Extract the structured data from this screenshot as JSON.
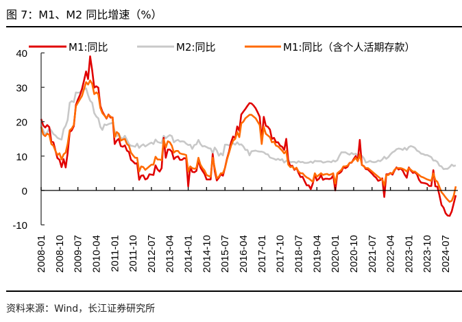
{
  "title": "图 7：M1、M2 同比增速（%）",
  "source": "资料来源：Wind，长江证券研究所",
  "chart_data": {
    "type": "line",
    "title": "",
    "xlabel": "",
    "ylabel": "",
    "x_start": "2008-01",
    "x_end": "2024-12",
    "x_frequency": "monthly",
    "ylim": [
      -10,
      40
    ],
    "yticks": [
      40,
      30,
      20,
      10,
      0,
      -10
    ],
    "xtick_labels": [
      "2008-01",
      "2008-10",
      "2009-07",
      "2010-04",
      "2011-01",
      "2011-10",
      "2012-07",
      "2013-04",
      "2014-01",
      "2014-10",
      "2015-07",
      "2016-04",
      "2017-01",
      "2017-10",
      "2018-07",
      "2019-04",
      "2020-01",
      "2020-10",
      "2021-07",
      "2022-04",
      "2023-01",
      "2023-10",
      "2024-07"
    ],
    "grid": false,
    "legend_position": "top",
    "series": [
      {
        "name": "M1:同比",
        "color": "#e00000",
        "values": [
          20.8,
          18.9,
          18.3,
          19.0,
          18.4,
          14.2,
          14.0,
          11.6,
          9.4,
          8.9,
          6.8,
          9.1,
          6.7,
          10.9,
          17.0,
          17.5,
          18.7,
          24.8,
          26.4,
          27.7,
          29.5,
          32.0,
          34.6,
          32.4,
          39.0,
          34.9,
          29.9,
          30.3,
          29.9,
          24.6,
          22.9,
          21.9,
          20.9,
          22.1,
          21.2,
          21.2,
          13.5,
          14.5,
          15.0,
          12.9,
          12.7,
          13.1,
          11.6,
          11.2,
          8.9,
          8.4,
          7.8,
          7.9,
          3.1,
          4.3,
          4.4,
          3.2,
          3.5,
          4.7,
          4.6,
          4.5,
          7.3,
          6.1,
          5.5,
          6.5,
          15.3,
          9.5,
          11.9,
          11.9,
          11.3,
          9.1,
          9.7,
          9.9,
          8.9,
          8.9,
          9.4,
          9.3,
          1.2,
          6.9,
          5.4,
          5.3,
          5.7,
          8.9,
          6.7,
          5.7,
          4.8,
          3.2,
          3.2,
          3.2,
          10.6,
          5.6,
          2.9,
          3.7,
          4.7,
          4.3,
          6.6,
          9.3,
          11.4,
          14.0,
          15.7,
          15.2,
          18.6,
          17.4,
          22.1,
          22.9,
          23.7,
          24.6,
          25.4,
          25.3,
          24.7,
          23.9,
          22.7,
          21.4,
          14.5,
          21.4,
          18.8,
          18.5,
          17.7,
          15.0,
          15.3,
          14.0,
          14.0,
          13.0,
          12.7,
          11.8,
          15.0,
          8.5,
          7.1,
          7.2,
          6.0,
          6.6,
          5.1,
          3.9,
          4.0,
          2.7,
          1.5,
          1.5,
          0.4,
          2.0,
          4.6,
          2.9,
          3.4,
          4.4,
          3.1,
          3.4,
          3.4,
          3.3,
          3.5,
          4.4,
          0.0,
          4.8,
          5.0,
          5.5,
          6.8,
          6.5,
          6.9,
          8.0,
          8.1,
          9.1,
          10.0,
          8.6,
          14.7,
          7.4,
          7.1,
          6.2,
          6.1,
          5.5,
          4.9,
          4.2,
          3.7,
          2.8,
          3.0,
          3.5,
          -1.9,
          4.7,
          4.7,
          5.1,
          4.6,
          5.8,
          6.7,
          6.1,
          6.4,
          5.8,
          4.6,
          3.7,
          6.7,
          5.8,
          5.1,
          5.3,
          4.7,
          3.1,
          2.3,
          2.2,
          2.1,
          1.9,
          1.3,
          1.3,
          5.9,
          1.2,
          1.1,
          -1.4,
          -4.2,
          -5.0,
          -6.6,
          -7.3,
          -7.4,
          -6.1,
          -3.7,
          -1.4
        ]
      },
      {
        "name": "M2:同比",
        "color": "#c8c8c8",
        "values": [
          18.9,
          17.5,
          16.3,
          16.9,
          18.1,
          17.4,
          16.4,
          16.0,
          15.3,
          15.0,
          14.8,
          17.8,
          18.8,
          20.5,
          25.5,
          26.0,
          25.7,
          28.5,
          28.4,
          28.5,
          29.3,
          29.4,
          29.7,
          27.7,
          26.1,
          25.5,
          22.5,
          21.5,
          21.0,
          18.5,
          17.6,
          19.2,
          19.0,
          19.3,
          19.5,
          19.7,
          17.2,
          15.7,
          16.6,
          15.3,
          15.1,
          15.9,
          14.7,
          13.5,
          13.0,
          12.9,
          12.7,
          13.6,
          12.4,
          13.0,
          13.4,
          12.8,
          13.2,
          13.6,
          13.9,
          13.5,
          14.8,
          14.1,
          13.9,
          13.8,
          15.9,
          15.2,
          15.7,
          16.1,
          15.8,
          14.0,
          14.5,
          14.7,
          14.2,
          14.3,
          14.2,
          13.6,
          13.2,
          13.3,
          12.1,
          13.2,
          13.4,
          14.7,
          13.5,
          12.8,
          12.9,
          12.6,
          12.3,
          12.2,
          10.8,
          12.5,
          11.6,
          10.1,
          10.8,
          10.2,
          13.3,
          13.3,
          13.1,
          13.5,
          13.7,
          13.3,
          14.0,
          13.3,
          13.4,
          12.8,
          11.8,
          11.8,
          10.2,
          11.4,
          11.5,
          11.6,
          11.4,
          11.3,
          11.3,
          11.1,
          10.6,
          10.5,
          9.6,
          9.4,
          9.2,
          8.9,
          9.2,
          8.8,
          9.1,
          8.1,
          8.6,
          8.8,
          8.2,
          8.3,
          8.3,
          8.0,
          8.5,
          8.2,
          8.3,
          8.0,
          8.0,
          8.1,
          8.4,
          8.0,
          8.6,
          8.5,
          8.5,
          8.5,
          8.1,
          8.2,
          8.4,
          8.4,
          8.2,
          8.7,
          8.4,
          8.8,
          10.1,
          11.1,
          11.1,
          11.1,
          10.7,
          10.4,
          10.9,
          10.5,
          10.7,
          10.1,
          9.4,
          10.1,
          9.4,
          8.1,
          8.3,
          8.6,
          8.3,
          8.2,
          8.3,
          8.7,
          8.5,
          9.0,
          9.8,
          9.2,
          9.7,
          10.5,
          11.1,
          11.4,
          12.0,
          12.2,
          12.1,
          11.8,
          12.4,
          11.8,
          12.6,
          12.9,
          12.7,
          12.4,
          11.6,
          11.3,
          10.7,
          10.6,
          10.3,
          10.3,
          10.0,
          9.7,
          8.7,
          8.7,
          8.3,
          7.2,
          7.0,
          6.2,
          6.3,
          6.3,
          6.8,
          7.5,
          7.1,
          7.3
        ]
      },
      {
        "name": "M1:同比（含个人活期存款）",
        "color": "#ff6a00",
        "values": [
          18.5,
          16.3,
          15.8,
          16.5,
          16.2,
          13.5,
          13.0,
          11.5,
          10.3,
          10.8,
          9.0,
          10.5,
          11.0,
          13.5,
          17.5,
          18.0,
          19.0,
          24.5,
          25.5,
          26.5,
          27.5,
          29.5,
          31.5,
          30.8,
          32.0,
          31.0,
          28.0,
          28.5,
          28.0,
          24.0,
          22.5,
          21.8,
          21.0,
          22.0,
          21.5,
          21.0,
          15.5,
          17.0,
          16.5,
          14.5,
          14.8,
          15.0,
          13.5,
          13.0,
          11.0,
          10.2,
          9.5,
          9.5,
          5.5,
          7.0,
          6.8,
          6.0,
          6.5,
          7.0,
          7.5,
          7.5,
          9.8,
          9.0,
          9.0,
          8.8,
          14.8,
          12.5,
          14.3,
          14.0,
          13.0,
          11.0,
          11.5,
          11.5,
          10.8,
          10.6,
          10.5,
          10.3,
          5.5,
          7.0,
          6.5,
          6.3,
          6.5,
          9.5,
          7.5,
          6.5,
          5.8,
          4.5,
          4.2,
          4.0,
          9.5,
          6.5,
          3.5,
          4.0,
          5.0,
          5.0,
          6.5,
          9.0,
          11.0,
          13.0,
          14.5,
          15.0,
          17.0,
          15.5,
          19.5,
          20.0,
          21.0,
          21.5,
          22.0,
          22.0,
          21.5,
          21.0,
          20.0,
          19.0,
          13.5,
          18.5,
          16.5,
          16.0,
          15.5,
          14.0,
          14.2,
          13.0,
          12.8,
          12.2,
          11.6,
          10.8,
          11.5,
          7.5,
          6.8,
          7.0,
          6.2,
          6.6,
          5.5,
          5.0,
          5.0,
          4.3,
          3.8,
          3.5,
          3.0,
          2.5,
          5.0,
          4.0,
          4.5,
          5.0,
          4.5,
          4.7,
          4.8,
          4.5,
          4.7,
          5.0,
          2.0,
          5.0,
          5.5,
          6.0,
          7.0,
          7.0,
          7.2,
          8.0,
          8.2,
          8.8,
          9.5,
          8.5,
          10.5,
          7.5,
          7.0,
          6.5,
          6.5,
          6.0,
          5.5,
          5.0,
          4.5,
          4.0,
          3.5,
          3.2,
          1.5,
          4.5,
          4.5,
          5.0,
          5.0,
          6.0,
          6.5,
          6.5,
          6.5,
          6.3,
          6.0,
          5.5,
          6.5,
          6.0,
          5.5,
          5.5,
          5.0,
          4.5,
          4.0,
          3.8,
          3.5,
          3.2,
          3.0,
          2.8,
          5.0,
          3.0,
          2.5,
          1.0,
          -0.5,
          -1.2,
          -2.0,
          -2.7,
          -3.3,
          -3.0,
          -1.5,
          1.2
        ]
      }
    ]
  }
}
